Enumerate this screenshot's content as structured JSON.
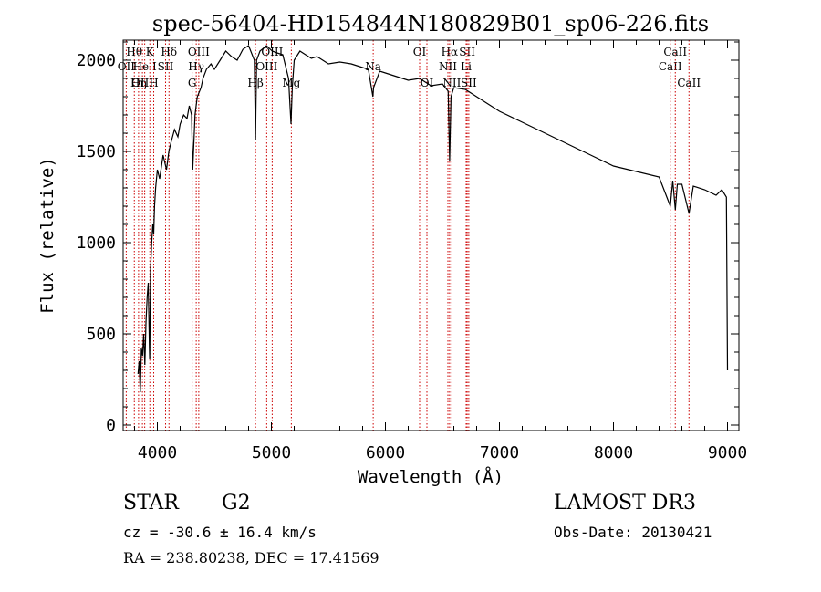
{
  "chart_data": {
    "type": "line",
    "title": "spec-56404-HD154844N180829B01_sp06-226.fits",
    "xlabel": "Wavelength (Å)",
    "ylabel": "Flux (relative)",
    "xlim": [
      3700,
      9100
    ],
    "ylim": [
      -30,
      2110
    ],
    "xticks": [
      4000,
      5000,
      6000,
      7000,
      8000,
      9000
    ],
    "yticks": [
      0,
      500,
      1000,
      1500,
      2000
    ],
    "x_tick_labels": [
      "4000",
      "5000",
      "6000",
      "7000",
      "8000",
      "9000"
    ],
    "y_tick_labels": [
      "0",
      "500",
      "1000",
      "1500",
      "2000"
    ],
    "series": [
      {
        "name": "flux",
        "x": [
          3830,
          3840,
          3850,
          3860,
          3870,
          3880,
          3890,
          3900,
          3910,
          3920,
          3930,
          3933,
          3940,
          3950,
          3960,
          3968,
          3975,
          3985,
          4000,
          4020,
          4050,
          4080,
          4101,
          4120,
          4150,
          4180,
          4200,
          4230,
          4260,
          4280,
          4300,
          4310,
          4330,
          4340,
          4350,
          4383,
          4400,
          4430,
          4470,
          4500,
          4550,
          4600,
          4650,
          4700,
          4750,
          4800,
          4850,
          4861,
          4870,
          4900,
          4957,
          5007,
          5050,
          5100,
          5150,
          5172,
          5183,
          5200,
          5250,
          5300,
          5350,
          5400,
          5450,
          5500,
          5600,
          5700,
          5800,
          5850,
          5890,
          5896,
          5950,
          6000,
          6100,
          6200,
          6300,
          6400,
          6500,
          6550,
          6563,
          6575,
          6600,
          6700,
          6800,
          6900,
          7000,
          7200,
          7400,
          7600,
          7800,
          8000,
          8200,
          8400,
          8498,
          8520,
          8542,
          8560,
          8600,
          8662,
          8700,
          8800,
          8900,
          8950,
          8990,
          9000
        ],
        "y": [
          280,
          350,
          180,
          420,
          380,
          500,
          330,
          560,
          700,
          780,
          420,
          360,
          850,
          1000,
          1100,
          1050,
          1200,
          1300,
          1400,
          1350,
          1480,
          1400,
          1500,
          1550,
          1620,
          1580,
          1650,
          1700,
          1680,
          1750,
          1700,
          1400,
          1700,
          1750,
          1800,
          1850,
          1900,
          1950,
          1980,
          1950,
          2000,
          2050,
          2020,
          2000,
          2060,
          2080,
          2000,
          1560,
          2000,
          2050,
          2080,
          2050,
          2040,
          2030,
          1900,
          1650,
          1850,
          2000,
          2050,
          2030,
          2010,
          2020,
          2000,
          1980,
          1990,
          1980,
          1960,
          1950,
          1800,
          1850,
          1940,
          1930,
          1910,
          1890,
          1900,
          1860,
          1870,
          1830,
          1450,
          1800,
          1850,
          1840,
          1800,
          1760,
          1720,
          1660,
          1600,
          1540,
          1480,
          1420,
          1390,
          1360,
          1200,
          1340,
          1180,
          1320,
          1320,
          1160,
          1310,
          1290,
          1260,
          1290,
          1250,
          300
        ]
      }
    ],
    "lines": [
      {
        "label": "Hθ",
        "wavelength": 3798,
        "row": 1
      },
      {
        "label": "OII",
        "wavelength": 3727,
        "row": 2
      },
      {
        "label": "OIII",
        "wavelength": 3869,
        "row": 3
      },
      {
        "label": "Hη",
        "wavelength": 3835,
        "row": 3
      },
      {
        "label": "He I",
        "wavelength": 3889,
        "row": 2
      },
      {
        "label": "K",
        "wavelength": 3934,
        "row": 1
      },
      {
        "label": "H",
        "wavelength": 3968,
        "row": 3
      },
      {
        "label": "Hδ",
        "wavelength": 4102,
        "row": 1
      },
      {
        "label": "SII",
        "wavelength": 4072,
        "row": 2
      },
      {
        "label": "OIII",
        "wavelength": 4363,
        "row": 1
      },
      {
        "label": "Hγ",
        "wavelength": 4341,
        "row": 2
      },
      {
        "label": "G",
        "wavelength": 4305,
        "row": 3
      },
      {
        "label": "Hβ",
        "wavelength": 4861,
        "row": 3
      },
      {
        "label": "OIII",
        "wavelength": 4959,
        "row": 2
      },
      {
        "label": "OIII",
        "wavelength": 5007,
        "row": 1
      },
      {
        "label": "Mg",
        "wavelength": 5175,
        "row": 3
      },
      {
        "label": "Na",
        "wavelength": 5893,
        "row": 2
      },
      {
        "label": "OI",
        "wavelength": 6300,
        "row": 1
      },
      {
        "label": "OI",
        "wavelength": 6364,
        "row": 3
      },
      {
        "label": "Hα",
        "wavelength": 6563,
        "row": 1
      },
      {
        "label": "NII",
        "wavelength": 6548,
        "row": 2
      },
      {
        "label": "NII",
        "wavelength": 6583,
        "row": 3
      },
      {
        "label": "SII",
        "wavelength": 6717,
        "row": 1
      },
      {
        "label": "Li",
        "wavelength": 6708,
        "row": 2
      },
      {
        "label": "SII",
        "wavelength": 6731,
        "row": 3
      },
      {
        "label": "CaII",
        "wavelength": 8498,
        "row": 2
      },
      {
        "label": "CaII",
        "wavelength": 8542,
        "row": 1
      },
      {
        "label": "CaII",
        "wavelength": 8662,
        "row": 3
      }
    ]
  },
  "info": {
    "object_class": "STAR",
    "subclass": "G2",
    "survey": "LAMOST DR3",
    "redshift": "cz = -30.6 ± 16.4 km/s",
    "obs_date": "Obs-Date: 20130421",
    "coords": "RA = 238.80238, DEC =  17.41569"
  },
  "colors": {
    "spectrum": "#000000",
    "line_marker": "#cc0000"
  }
}
